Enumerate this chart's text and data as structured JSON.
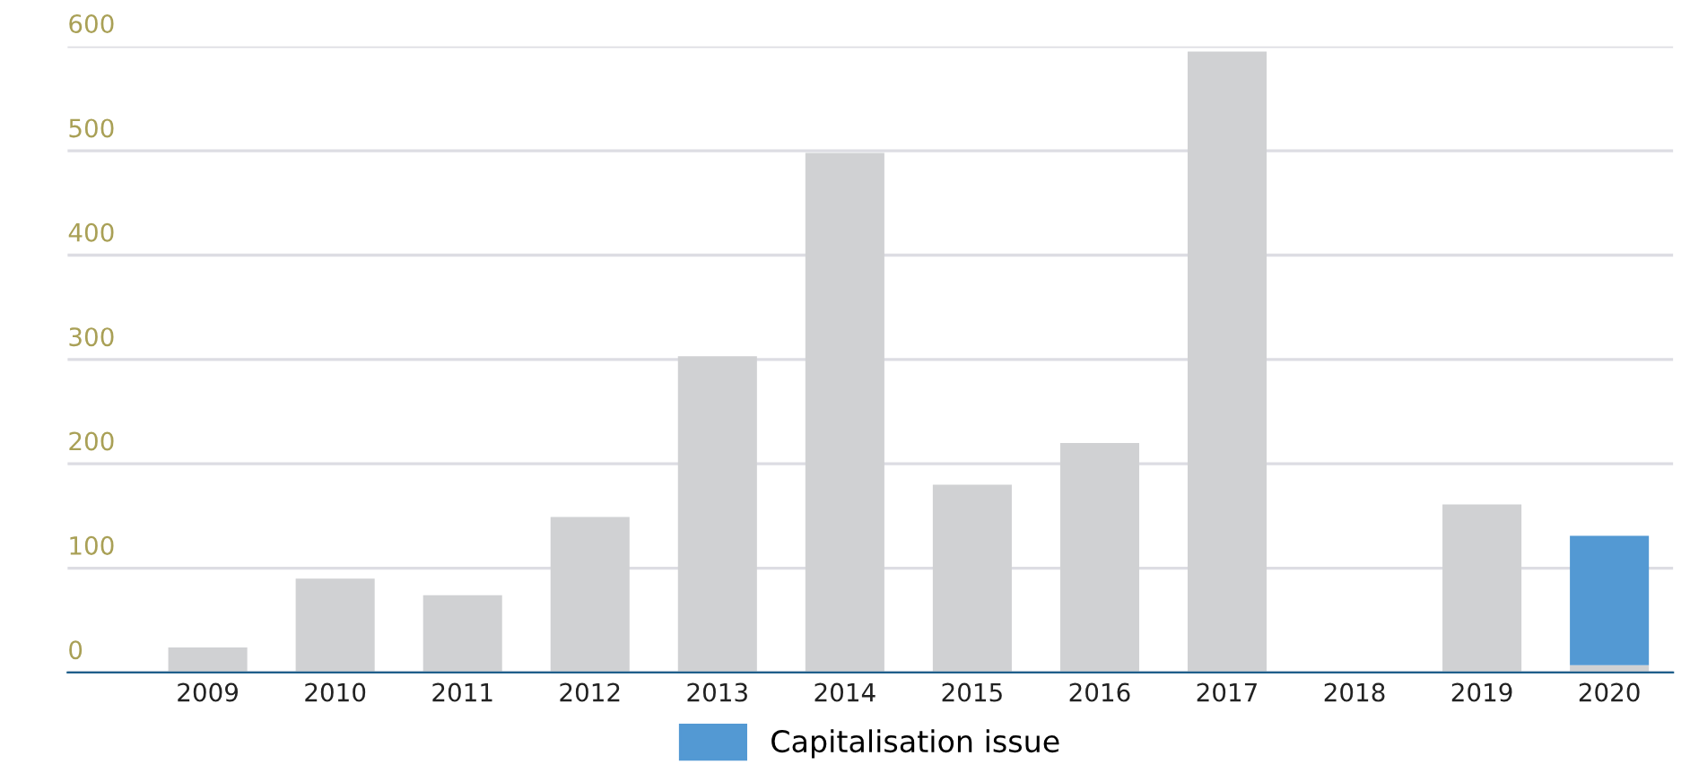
{
  "chart_data": {
    "type": "bar",
    "stacked": true,
    "categories": [
      "2009",
      "2010",
      "2011",
      "2012",
      "2013",
      "2014",
      "2015",
      "2016",
      "2017",
      "2018",
      "2019",
      "2020"
    ],
    "series": [
      {
        "color": "#d0d1d3",
        "values": [
          24,
          90,
          74,
          149,
          303,
          498,
          180,
          220,
          595,
          0,
          161,
          7
        ]
      },
      {
        "name": "Capitalisation issue",
        "color": "#5399d3",
        "values": [
          null,
          null,
          null,
          null,
          null,
          null,
          null,
          null,
          null,
          null,
          null,
          124
        ]
      }
    ],
    "ylim": [
      0,
      600
    ],
    "yticks": [
      0,
      100,
      200,
      300,
      400,
      500,
      600
    ],
    "grid": "y",
    "legend": "bottom"
  }
}
